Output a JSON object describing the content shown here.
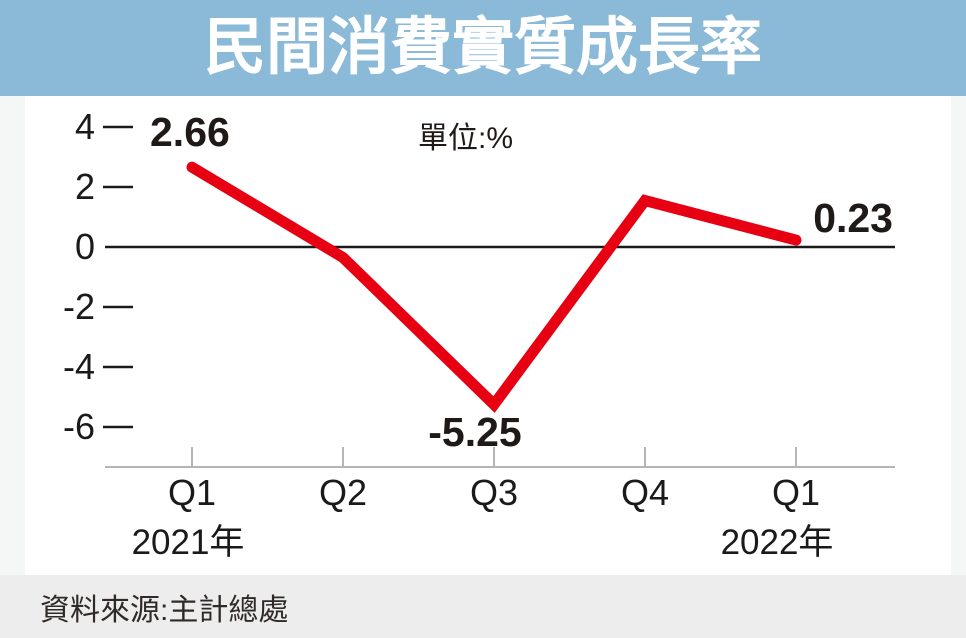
{
  "header": {
    "title": "民間消費實質成長率",
    "bg_color": "#8abad8",
    "title_color": "#ffffff"
  },
  "footer": {
    "source_text": "資料來源:主計總處"
  },
  "chart_data": {
    "type": "line",
    "title": "民間消費實質成長率",
    "unit_label": "單位:%",
    "categories": [
      "Q1",
      "Q2",
      "Q3",
      "Q4",
      "Q1"
    ],
    "x_year_labels": [
      {
        "text": "2021年",
        "position": "first"
      },
      {
        "text": "2022年",
        "position": "last"
      }
    ],
    "values": [
      2.66,
      -0.35,
      -5.25,
      1.55,
      0.23
    ],
    "point_labels": [
      {
        "point": "2021 Q1",
        "text": "2.66"
      },
      {
        "point": "2021 Q3",
        "text": "-5.25"
      },
      {
        "point": "2022 Q1",
        "text": "0.23"
      }
    ],
    "yticks": [
      "4",
      "2",
      "0",
      "-2",
      "-4",
      "-6"
    ],
    "ylim": [
      -7.3,
      5.2
    ],
    "grid": "zero-line-only",
    "legend": "none",
    "line_color": "#e60012",
    "source": "主計總處"
  }
}
